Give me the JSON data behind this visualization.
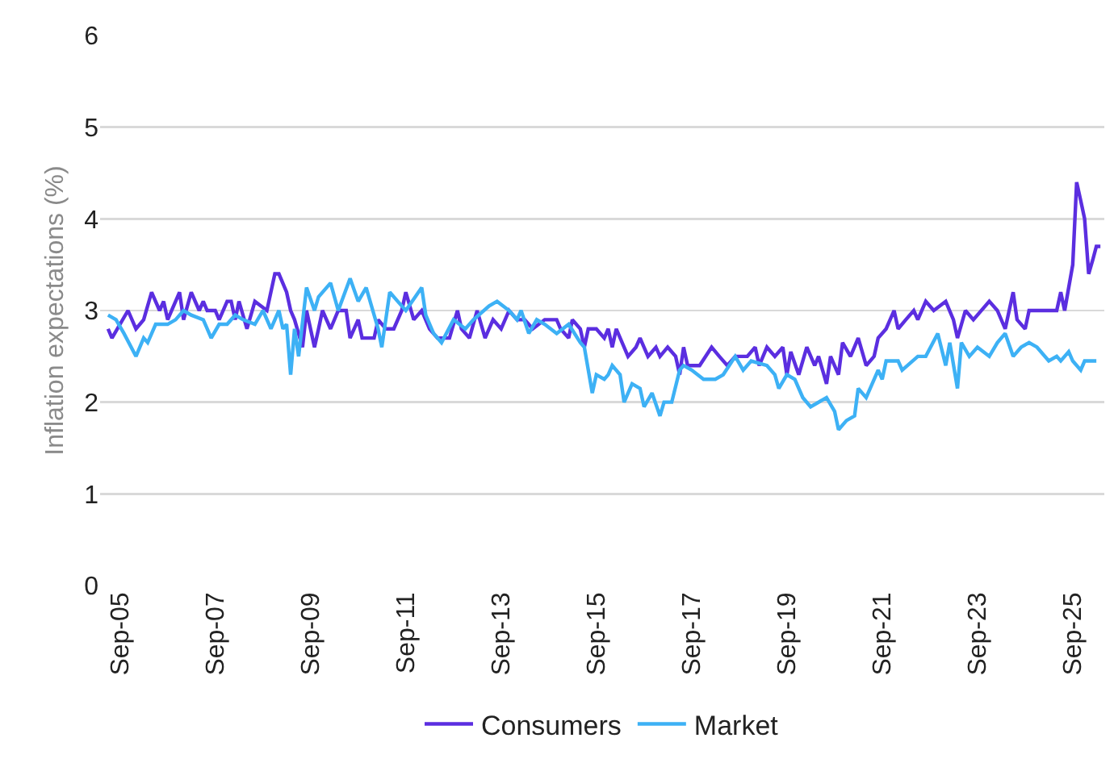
{
  "chart_data": {
    "type": "line",
    "ylabel": "Inflation expectations (%)",
    "xlim": [
      "2005-04",
      "2026-05"
    ],
    "ylim": [
      0,
      6
    ],
    "yticks": [
      0,
      1,
      2,
      3,
      4,
      5,
      6
    ],
    "xticks": [
      {
        "value": "2005-09",
        "label": "Sep-05"
      },
      {
        "value": "2007-09",
        "label": "Sep-07"
      },
      {
        "value": "2009-09",
        "label": "Sep-09"
      },
      {
        "value": "2011-09",
        "label": "Sep-11"
      },
      {
        "value": "2013-09",
        "label": "Sep-13"
      },
      {
        "value": "2015-09",
        "label": "Sep-15"
      },
      {
        "value": "2017-09",
        "label": "Sep-17"
      },
      {
        "value": "2019-09",
        "label": "Sep-19"
      },
      {
        "value": "2021-09",
        "label": "Sep-21"
      },
      {
        "value": "2023-09",
        "label": "Sep-23"
      },
      {
        "value": "2025-09",
        "label": "Sep-25"
      }
    ],
    "grid": "y",
    "legend": "bottom",
    "marker": "none",
    "line_style": "solid",
    "series": [
      {
        "name": "Consumers",
        "color": "#5b2ee0",
        "x": [
          "2005-06",
          "2005-07",
          "2005-11",
          "2006-01",
          "2006-03",
          "2006-05",
          "2006-07",
          "2006-08",
          "2006-09",
          "2006-12",
          "2007-01",
          "2007-03",
          "2007-05",
          "2007-06",
          "2007-07",
          "2007-09",
          "2007-10",
          "2007-12",
          "2008-01",
          "2008-02",
          "2008-03",
          "2008-05",
          "2008-07",
          "2008-10",
          "2008-12",
          "2009-01",
          "2009-03",
          "2009-04",
          "2009-05",
          "2009-07",
          "2009-08",
          "2009-10",
          "2009-11",
          "2009-12",
          "2010-02",
          "2010-04",
          "2010-06",
          "2010-07",
          "2010-09",
          "2010-10",
          "2011-01",
          "2011-02",
          "2011-04",
          "2011-06",
          "2011-08",
          "2011-09",
          "2011-11",
          "2012-01",
          "2012-03",
          "2012-05",
          "2012-08",
          "2012-10",
          "2012-11",
          "2013-01",
          "2013-03",
          "2013-05",
          "2013-07",
          "2013-09",
          "2013-11",
          "2014-01",
          "2014-03",
          "2014-05",
          "2014-08",
          "2014-11",
          "2014-12",
          "2015-02",
          "2015-03",
          "2015-05",
          "2015-06",
          "2015-07",
          "2015-09",
          "2015-11",
          "2015-12",
          "2016-01",
          "2016-02",
          "2016-05",
          "2016-07",
          "2016-08",
          "2016-10",
          "2016-12",
          "2017-01",
          "2017-03",
          "2017-05",
          "2017-06",
          "2017-07",
          "2017-08",
          "2017-11",
          "2018-02",
          "2018-04",
          "2018-06",
          "2018-08",
          "2018-11",
          "2019-01",
          "2019-02",
          "2019-04",
          "2019-06",
          "2019-08",
          "2019-09",
          "2019-10",
          "2019-12",
          "2020-02",
          "2020-04",
          "2020-05",
          "2020-07",
          "2020-08",
          "2020-10",
          "2020-11",
          "2021-01",
          "2021-03",
          "2021-05",
          "2021-07",
          "2021-08",
          "2021-10",
          "2021-12",
          "2022-01",
          "2022-03",
          "2022-05",
          "2022-06",
          "2022-08",
          "2022-10",
          "2023-01",
          "2023-03",
          "2023-04",
          "2023-06",
          "2023-08",
          "2023-12",
          "2024-02",
          "2024-04",
          "2024-06",
          "2024-07",
          "2024-09",
          "2024-10",
          "2025-05",
          "2025-06",
          "2025-07",
          "2025-09",
          "2025-10",
          "2025-11",
          "2025-12",
          "2026-01",
          "2026-02",
          "2026-03",
          "2026-04"
        ],
        "values": [
          2.8,
          2.7,
          3.0,
          2.8,
          2.9,
          3.2,
          3.0,
          3.1,
          2.9,
          3.2,
          2.9,
          3.2,
          3.0,
          3.1,
          3.0,
          3.0,
          2.9,
          3.1,
          3.1,
          2.9,
          3.1,
          2.8,
          3.1,
          3.0,
          3.4,
          3.4,
          3.2,
          3.0,
          2.9,
          2.6,
          3.0,
          2.6,
          2.8,
          3.0,
          2.8,
          3.0,
          3.0,
          2.7,
          2.9,
          2.7,
          2.7,
          2.9,
          2.8,
          2.8,
          3.0,
          3.2,
          2.9,
          3.0,
          2.8,
          2.7,
          2.7,
          3.0,
          2.8,
          2.7,
          3.0,
          2.7,
          2.9,
          2.8,
          3.0,
          2.9,
          2.9,
          2.8,
          2.9,
          2.9,
          2.8,
          2.7,
          2.9,
          2.8,
          2.6,
          2.8,
          2.8,
          2.7,
          2.8,
          2.6,
          2.8,
          2.5,
          2.6,
          2.7,
          2.5,
          2.6,
          2.5,
          2.6,
          2.5,
          2.3,
          2.6,
          2.4,
          2.4,
          2.6,
          2.5,
          2.4,
          2.5,
          2.5,
          2.6,
          2.4,
          2.6,
          2.5,
          2.6,
          2.3,
          2.55,
          2.3,
          2.6,
          2.4,
          2.5,
          2.2,
          2.5,
          2.3,
          2.65,
          2.5,
          2.7,
          2.4,
          2.5,
          2.7,
          2.8,
          3.0,
          2.8,
          2.9,
          3.0,
          2.9,
          3.1,
          3.0,
          3.1,
          2.9,
          2.7,
          3.0,
          2.9,
          3.1,
          3.0,
          2.8,
          3.2,
          2.9,
          2.8,
          3.0,
          3.0,
          3.2,
          3.0,
          3.5,
          4.4,
          4.2,
          4.0,
          3.4,
          3.55,
          3.7,
          3.7
        ]
      },
      {
        "name": "Market",
        "color": "#3db1f5",
        "x": [
          "2005-06",
          "2005-08",
          "2005-10",
          "2006-01",
          "2006-03",
          "2006-04",
          "2006-06",
          "2006-09",
          "2006-11",
          "2007-01",
          "2007-03",
          "2007-06",
          "2007-08",
          "2007-10",
          "2007-12",
          "2008-02",
          "2008-04",
          "2008-07",
          "2008-09",
          "2008-11",
          "2009-01",
          "2009-02",
          "2009-03",
          "2009-04",
          "2009-05",
          "2009-06",
          "2009-08",
          "2009-10",
          "2009-11",
          "2010-02",
          "2010-04",
          "2010-07",
          "2010-09",
          "2010-11",
          "2011-02",
          "2011-03",
          "2011-05",
          "2011-07",
          "2011-09",
          "2012-01",
          "2012-02",
          "2012-04",
          "2012-06",
          "2012-09",
          "2012-12",
          "2013-02",
          "2013-06",
          "2013-08",
          "2013-11",
          "2014-01",
          "2014-02",
          "2014-04",
          "2014-06",
          "2014-08",
          "2014-11",
          "2015-02",
          "2015-05",
          "2015-06",
          "2015-08",
          "2015-09",
          "2015-11",
          "2015-12",
          "2016-01",
          "2016-03",
          "2016-04",
          "2016-06",
          "2016-08",
          "2016-09",
          "2016-11",
          "2017-01",
          "2017-02",
          "2017-04",
          "2017-06",
          "2017-07",
          "2017-09",
          "2017-12",
          "2018-03",
          "2018-05",
          "2018-08",
          "2018-10",
          "2018-12",
          "2019-04",
          "2019-06",
          "2019-07",
          "2019-09",
          "2019-11",
          "2020-01",
          "2020-03",
          "2020-07",
          "2020-09",
          "2020-10",
          "2020-12",
          "2021-02",
          "2021-03",
          "2021-05",
          "2021-08",
          "2021-09",
          "2021-10",
          "2022-01",
          "2022-02",
          "2022-06",
          "2022-08",
          "2022-11",
          "2023-01",
          "2023-02",
          "2023-04",
          "2023-05",
          "2023-07",
          "2023-09",
          "2023-12",
          "2024-02",
          "2024-04",
          "2024-06",
          "2024-08",
          "2024-10",
          "2024-12",
          "2025-03",
          "2025-05",
          "2025-06",
          "2025-08",
          "2025-09",
          "2025-11",
          "2025-12",
          "2026-03"
        ],
        "values": [
          2.95,
          2.9,
          2.75,
          2.5,
          2.7,
          2.65,
          2.85,
          2.85,
          2.9,
          3.0,
          2.95,
          2.9,
          2.7,
          2.85,
          2.85,
          2.95,
          2.9,
          2.85,
          3.0,
          2.8,
          3.0,
          2.8,
          2.85,
          2.3,
          2.8,
          2.5,
          3.25,
          3.0,
          3.15,
          3.3,
          3.0,
          3.35,
          3.1,
          3.25,
          2.8,
          2.6,
          3.2,
          3.1,
          3.0,
          3.25,
          2.95,
          2.75,
          2.65,
          2.9,
          2.8,
          2.9,
          3.05,
          3.1,
          3.0,
          2.9,
          3.0,
          2.75,
          2.9,
          2.85,
          2.75,
          2.85,
          2.65,
          2.6,
          2.1,
          2.3,
          2.25,
          2.3,
          2.4,
          2.3,
          2.0,
          2.2,
          2.15,
          1.95,
          2.1,
          1.85,
          2.0,
          2.0,
          2.35,
          2.4,
          2.35,
          2.25,
          2.25,
          2.3,
          2.5,
          2.35,
          2.45,
          2.4,
          2.3,
          2.15,
          2.3,
          2.25,
          2.05,
          1.95,
          2.05,
          1.9,
          1.7,
          1.8,
          1.85,
          2.15,
          2.05,
          2.35,
          2.25,
          2.45,
          2.45,
          2.35,
          2.5,
          2.5,
          2.75,
          2.4,
          2.65,
          2.15,
          2.65,
          2.5,
          2.6,
          2.5,
          2.65,
          2.75,
          2.5,
          2.6,
          2.65,
          2.6,
          2.45,
          2.5,
          2.45,
          2.55,
          2.45,
          2.35,
          2.45,
          2.45
        ]
      }
    ]
  }
}
